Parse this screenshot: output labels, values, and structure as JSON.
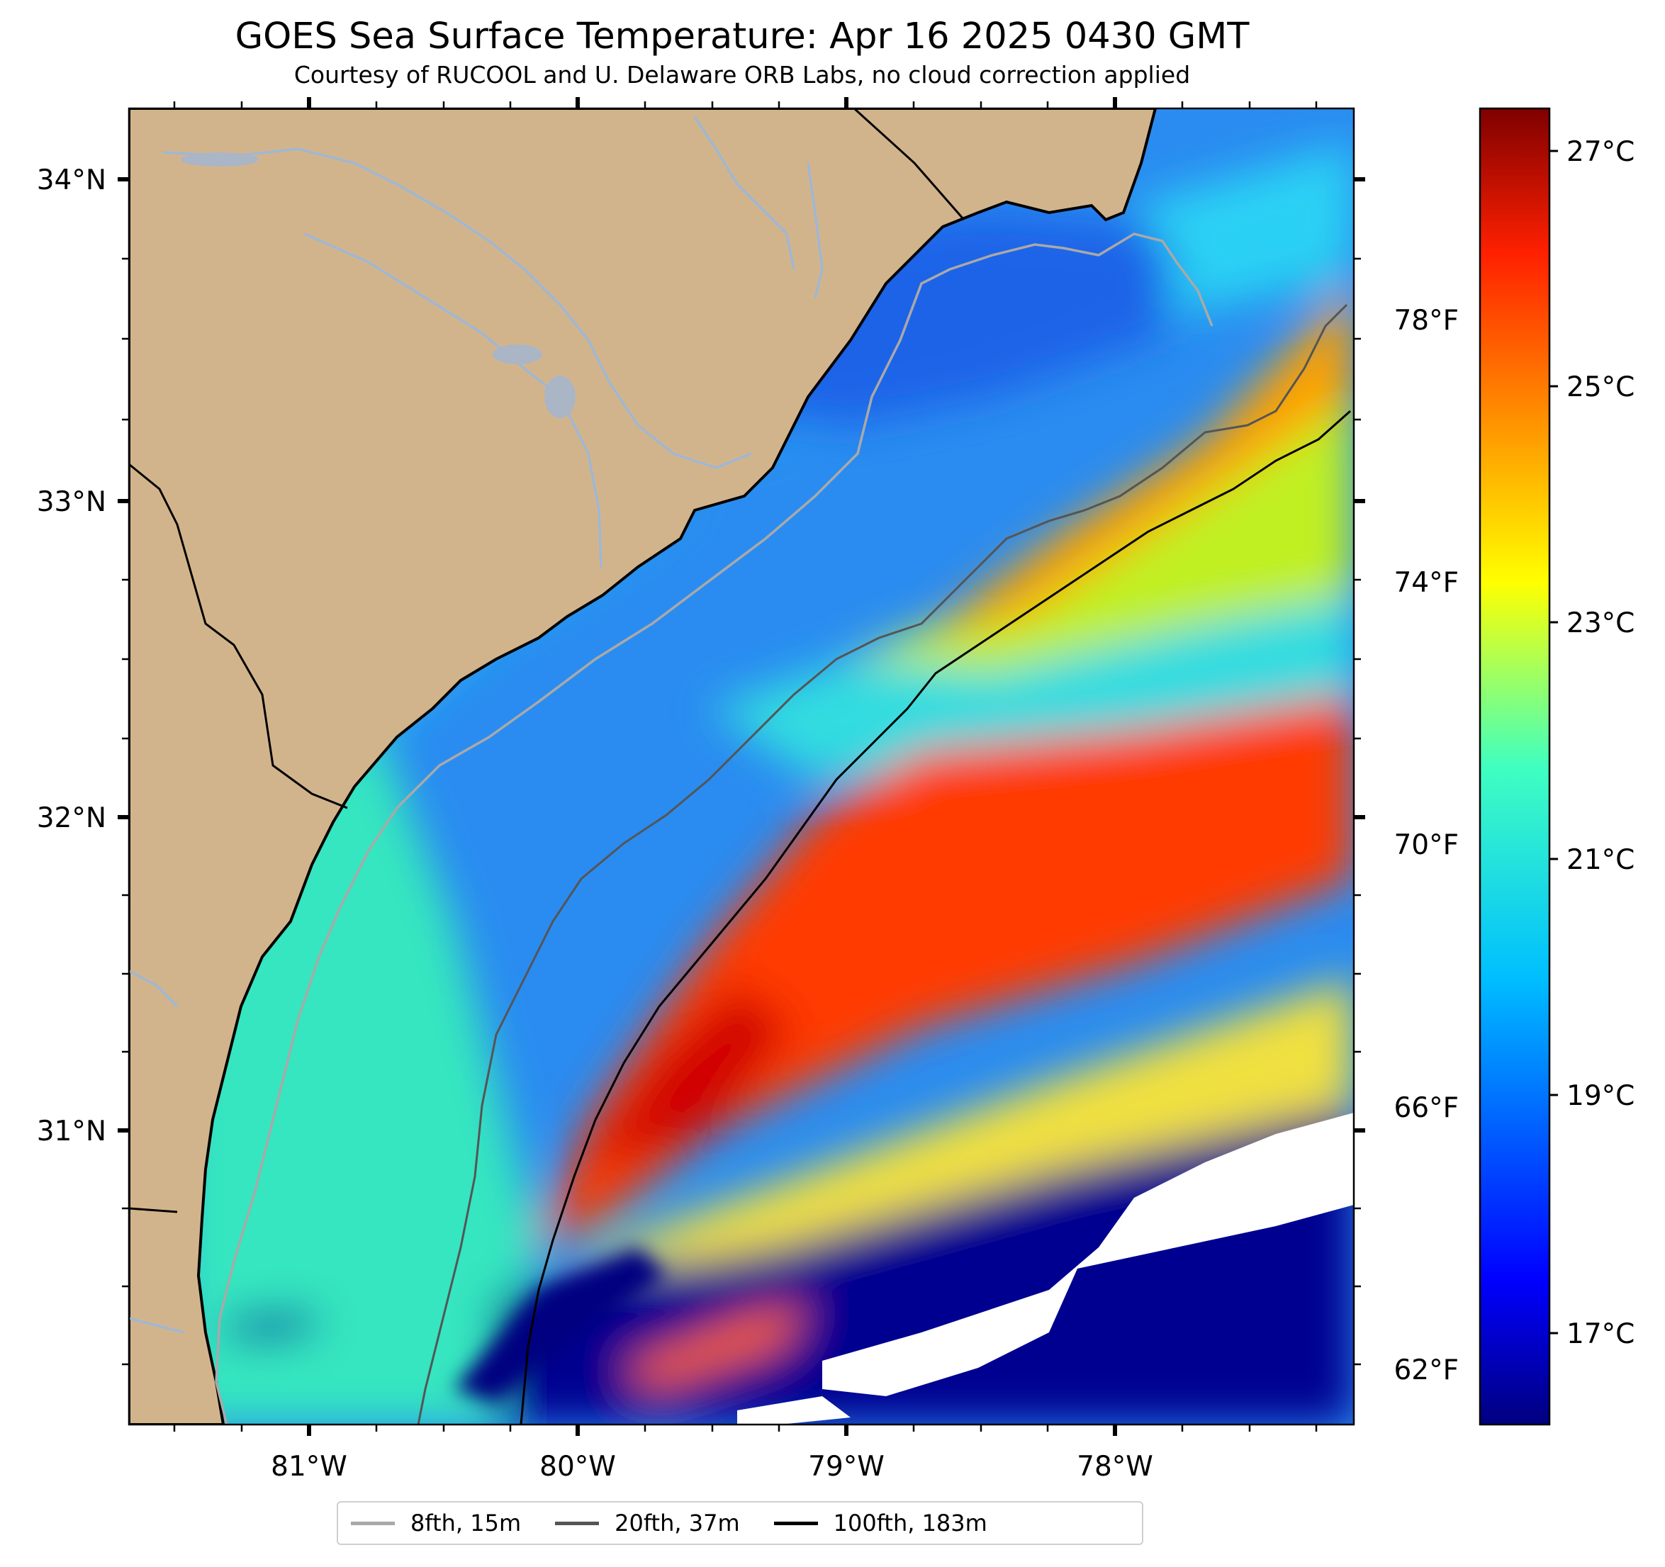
{
  "header": {
    "title": "GOES Sea Surface Temperature: Apr 16 2025 0430 GMT",
    "subtitle": "Courtesy of RUCOOL and U. Delaware ORB Labs, no cloud correction applied"
  },
  "map": {
    "longitude_ticks": [
      "81°W",
      "80°W",
      "79°W",
      "78°W"
    ],
    "latitude_ticks": [
      "34°N",
      "33°N",
      "32°N",
      "31°N"
    ],
    "land_color": "#d2b48c",
    "water_feature_color": "#9fb7d4"
  },
  "colorbar": {
    "colormap": "jet",
    "celsius_ticks": [
      "27°C",
      "25°C",
      "23°C",
      "21°C",
      "19°C",
      "17°C"
    ],
    "fahrenheit_ticks": [
      "78°F",
      "74°F",
      "70°F",
      "66°F",
      "62°F"
    ]
  },
  "legend": {
    "items": [
      {
        "label": "8fth, 15m",
        "color": "#a9a9a9"
      },
      {
        "label": "20fth, 37m",
        "color": "#555555"
      },
      {
        "label": "100fth, 183m",
        "color": "#000000"
      }
    ]
  }
}
